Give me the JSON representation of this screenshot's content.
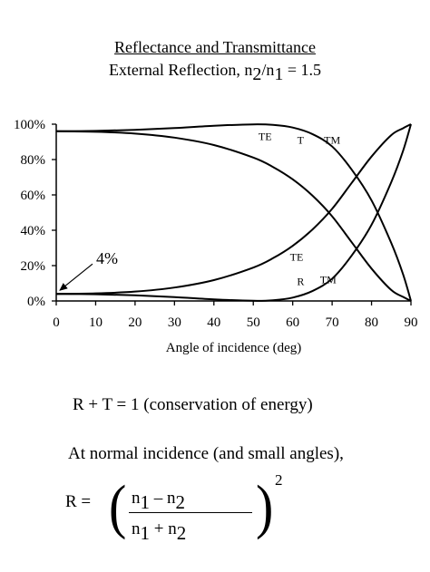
{
  "title_line1": "Reflectance and Transmittance",
  "title_line2": {
    "prefix": "External Reflection, n",
    "sub1": "2",
    "mid": "/n",
    "sub2": "1",
    "suffix": " = 1.5"
  },
  "chart_data": {
    "type": "line",
    "xlabel": "Angle of incidence (deg)",
    "ylabel": "",
    "xlim": [
      0,
      90
    ],
    "ylim": [
      0,
      100
    ],
    "x_ticks": [
      "0",
      "10",
      "20",
      "30",
      "40",
      "50",
      "60",
      "70",
      "80",
      "90"
    ],
    "y_ticks": [
      "0%",
      "20%",
      "40%",
      "60%",
      "80%",
      "100%"
    ],
    "grid": false,
    "x": [
      0,
      10,
      20,
      30,
      40,
      50,
      55,
      60,
      65,
      70,
      75,
      80,
      85,
      88,
      90
    ],
    "series": [
      {
        "name": "R TE",
        "values": [
          4.0,
          4.3,
          5.3,
          7.6,
          11.8,
          18.9,
          24.2,
          31.2,
          40.4,
          52.1,
          66.9,
          81.7,
          93.8,
          97.7,
          100
        ]
      },
      {
        "name": "R TM",
        "values": [
          4.0,
          3.8,
          3.2,
          2.2,
          0.9,
          0.1,
          0.4,
          1.9,
          5.6,
          12.6,
          25.8,
          43.1,
          67.2,
          84.9,
          100
        ]
      },
      {
        "name": "T TE",
        "values": [
          96.0,
          95.7,
          94.7,
          92.4,
          88.2,
          81.1,
          75.8,
          68.8,
          59.6,
          47.9,
          33.1,
          18.3,
          6.2,
          2.3,
          0
        ]
      },
      {
        "name": "T TM",
        "values": [
          96.0,
          96.2,
          96.8,
          97.8,
          99.1,
          99.9,
          99.6,
          98.1,
          94.4,
          87.4,
          74.2,
          56.9,
          32.8,
          15.1,
          0
        ]
      }
    ],
    "annotations": [
      {
        "text": "4%",
        "x": 0,
        "y": 4
      },
      {
        "text": "TE",
        "x": 53,
        "y": 93
      },
      {
        "text": "T",
        "x": 62,
        "y": 91
      },
      {
        "text": "TM",
        "x": 70,
        "y": 91
      },
      {
        "text": "TE",
        "x": 61,
        "y": 25
      },
      {
        "text": "R",
        "x": 62,
        "y": 11
      },
      {
        "text": "TM",
        "x": 69,
        "y": 12
      }
    ]
  },
  "equation1": "R + T = 1 (conservation of energy)",
  "equation2": "At normal incidence (and small angles),",
  "formula": {
    "lhs": "R =",
    "open_paren": "(",
    "close_paren": ")",
    "num_n1": "n",
    "num_sub1": "1",
    "num_op": " – n",
    "num_sub2": "2",
    "den_n1": "n",
    "den_sub1": "1",
    "den_op": " + n",
    "den_sub2": "2",
    "exponent": "2"
  }
}
